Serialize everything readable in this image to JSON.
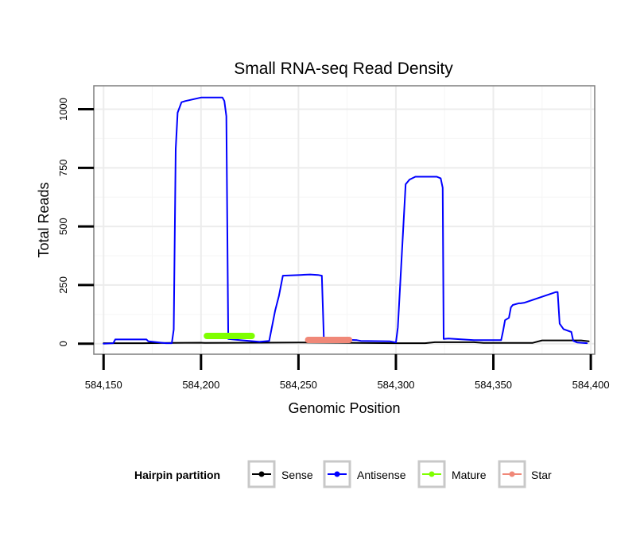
{
  "chart_data": {
    "type": "line",
    "title": "Small RNA-seq Read Density",
    "xlabel": "Genomic Position",
    "ylabel": "Total Reads",
    "xlim": [
      584145,
      584402
    ],
    "ylim": [
      -45,
      1100
    ],
    "xticks": [
      584150,
      584200,
      584250,
      584300,
      584350,
      584400
    ],
    "xtick_labels": [
      "584,150",
      "584,200",
      "584,250",
      "584,300",
      "584,350",
      "584,400"
    ],
    "yticks": [
      0,
      250,
      500,
      750,
      1000
    ],
    "ytick_labels": [
      "0",
      "250",
      "500",
      "750",
      "1000"
    ],
    "grid": true,
    "legend": {
      "title": "Hairpin partition",
      "position": "bottom",
      "entries": [
        "Sense",
        "Antisense",
        "Mature",
        "Star"
      ]
    },
    "series": [
      {
        "name": "Sense",
        "color": "#000000",
        "width": 2,
        "x": [
          584150,
          584170,
          584184,
          584200,
          584202,
          584230,
          584250,
          584270,
          584280,
          584300,
          584315,
          584320,
          584340,
          584345,
          584360,
          584370,
          584375,
          584395,
          584399
        ],
        "y": [
          2,
          2,
          3,
          4,
          3,
          4,
          5,
          4,
          3,
          2,
          2,
          6,
          6,
          3,
          3,
          3,
          14,
          14,
          10
        ]
      },
      {
        "name": "Antisense",
        "color": "#0000ff",
        "width": 2,
        "x": [
          584150,
          584155,
          584156,
          584172,
          584173,
          584182,
          584185,
          584186,
          584187,
          584188,
          584190,
          584192,
          584200,
          584211,
          584212,
          584213,
          584214,
          584220,
          584230,
          584235,
          584238,
          584240,
          584242,
          584251,
          584256,
          584260,
          584262,
          584263,
          584264,
          584280,
          584282,
          584297,
          584300,
          584301,
          584305,
          584307,
          584310,
          584321,
          584323,
          584324,
          584324.5,
          584327,
          584340,
          584354,
          584355,
          584356,
          584358,
          584359,
          584360,
          584363,
          584364,
          584366,
          584382,
          584383,
          584384,
          584386,
          584390,
          584391,
          584393,
          584398
        ],
        "y": [
          0,
          2,
          18,
          18,
          10,
          2,
          2,
          60,
          830,
          985,
          1030,
          1035,
          1050,
          1050,
          1035,
          970,
          20,
          15,
          8,
          12,
          140,
          205,
          290,
          293,
          295,
          293,
          290,
          25,
          20,
          15,
          12,
          10,
          5,
          70,
          680,
          700,
          712,
          712,
          705,
          665,
          20,
          22,
          15,
          15,
          55,
          100,
          110,
          155,
          165,
          172,
          172,
          175,
          220,
          220,
          85,
          62,
          50,
          12,
          5,
          2
        ]
      },
      {
        "name": "Mature",
        "color": "#7fff00",
        "width": 8,
        "x": [
          584203,
          584226
        ],
        "y": [
          33,
          33
        ]
      },
      {
        "name": "Star",
        "color": "#f08878",
        "width": 8,
        "x": [
          584255,
          584276
        ],
        "y": [
          16,
          16
        ]
      }
    ]
  }
}
